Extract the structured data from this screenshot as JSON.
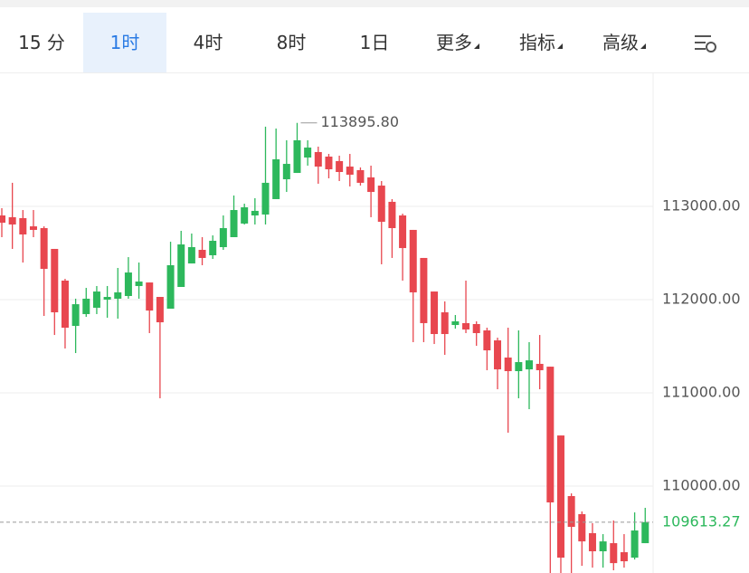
{
  "tabs": {
    "items": [
      "15 分",
      "1时",
      "4时",
      "8时",
      "1日",
      "更多",
      "指标",
      "高级"
    ],
    "active": 1
  },
  "chart_data": {
    "type": "candlestick",
    "open": [
      112903,
      112884,
      112874,
      112786,
      112767,
      112544,
      112204,
      111718,
      111845,
      111913,
      112000,
      112010,
      112039,
      112146,
      112184,
      112029,
      111903,
      112136,
      112388,
      112534,
      112476,
      112563,
      112670,
      112816,
      112903,
      112913,
      113078,
      113291,
      113359,
      113524,
      113583,
      113534,
      113486,
      113427,
      113389,
      113311,
      113223,
      113049,
      112903,
      112748,
      112447,
      112087,
      111864,
      111728,
      111748,
      111738,
      111670,
      111563,
      111379,
      111233,
      111252,
      111311,
      111281,
      110543,
      109893,
      109699,
      109495,
      109301,
      109388,
      109291,
      109233,
      109388
    ],
    "high": [
      112981,
      113253,
      112961,
      112961,
      112786,
      112544,
      112223,
      112010,
      112126,
      112146,
      112146,
      112340,
      112456,
      112398,
      112184,
      112029,
      112621,
      112738,
      112709,
      112670,
      112689,
      112903,
      113117,
      113029,
      113088,
      113855,
      113835,
      113709,
      113895.8,
      113709,
      113641,
      113563,
      113544,
      113563,
      113418,
      113437,
      113272,
      113078,
      112922,
      112748,
      112447,
      112087,
      111981,
      111835,
      112204,
      111767,
      111699,
      111592,
      111699,
      111670,
      111544,
      111621,
      111281,
      110543,
      109922,
      109728,
      109602,
      109485,
      109631,
      109485,
      109718,
      109767
    ],
    "low": [
      112670,
      112544,
      112398,
      112670,
      111825,
      111621,
      111476,
      111427,
      111815,
      111845,
      111806,
      111796,
      112010,
      112010,
      111641,
      110942,
      111903,
      112136,
      112388,
      112369,
      112437,
      112534,
      112670,
      112806,
      112806,
      112806,
      113078,
      113155,
      113359,
      113437,
      113243,
      113301,
      113272,
      113214,
      113223,
      112884,
      112379,
      112447,
      112204,
      111544,
      111544,
      111524,
      111408,
      111689,
      111641,
      111505,
      111243,
      111039,
      110573,
      110942,
      110825,
      111039,
      109050,
      109050,
      109050,
      109145,
      109126,
      109126,
      109097,
      109126,
      109213,
      109388
    ],
    "close": [
      112825,
      112806,
      112699,
      112748,
      112330,
      111864,
      111699,
      111951,
      112010,
      112087,
      112029,
      112078,
      112291,
      112194,
      111883,
      111757,
      112369,
      112592,
      112563,
      112447,
      112631,
      112767,
      112961,
      112990,
      112952,
      113253,
      113505,
      113456,
      113709,
      113631,
      113427,
      113398,
      113369,
      113340,
      113253,
      113155,
      112835,
      112767,
      112553,
      112078,
      111748,
      111631,
      111631,
      111767,
      111680,
      111641,
      111456,
      111252,
      111233,
      111330,
      111349,
      111243,
      109825,
      109233,
      109563,
      109407,
      109301,
      109407,
      109174,
      109194,
      109524,
      109613.27
    ],
    "up_color": "#2db85c",
    "down_color": "#e8474f",
    "ylim": [
      109068,
      114437
    ],
    "yticks": [
      {
        "value": 110000,
        "label": "110000.00"
      },
      {
        "value": 111000,
        "label": "111000.00"
      },
      {
        "value": 112000,
        "label": "112000.00"
      },
      {
        "value": 113000,
        "label": "113000.00"
      }
    ],
    "grid": true,
    "max_label": {
      "value": 113895.8,
      "label": "113895.80"
    },
    "last_price": 109613.27
  }
}
